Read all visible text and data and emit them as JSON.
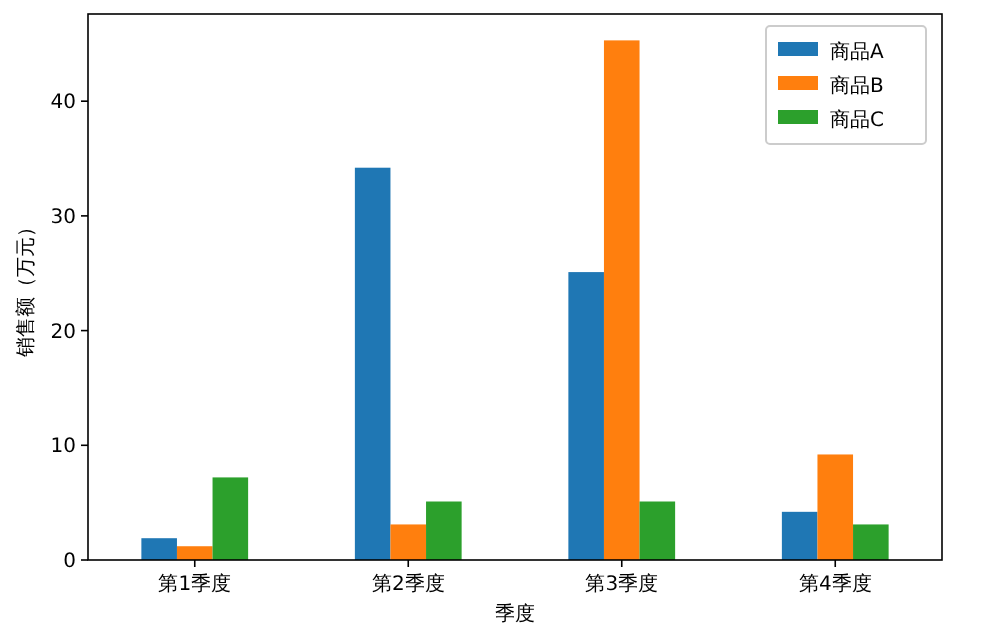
{
  "chart_data": {
    "type": "bar",
    "xlabel": "季度",
    "ylabel": "销售额（万元）",
    "categories": [
      "第1季度",
      "第2季度",
      "第3季度",
      "第4季度"
    ],
    "series": [
      {
        "name": "商品A",
        "color": "#1f77b4",
        "values": [
          1.9,
          34.2,
          25.1,
          4.2
        ]
      },
      {
        "name": "商品B",
        "color": "#ff7f0e",
        "values": [
          1.2,
          3.1,
          45.3,
          9.2
        ]
      },
      {
        "name": "商品C",
        "color": "#2ca02c",
        "values": [
          7.2,
          5.1,
          5.1,
          3.1
        ]
      }
    ],
    "ylim": [
      0,
      47.6
    ],
    "yticks": [
      0,
      10,
      20,
      30,
      40
    ],
    "grid": false,
    "legend": "top right"
  }
}
